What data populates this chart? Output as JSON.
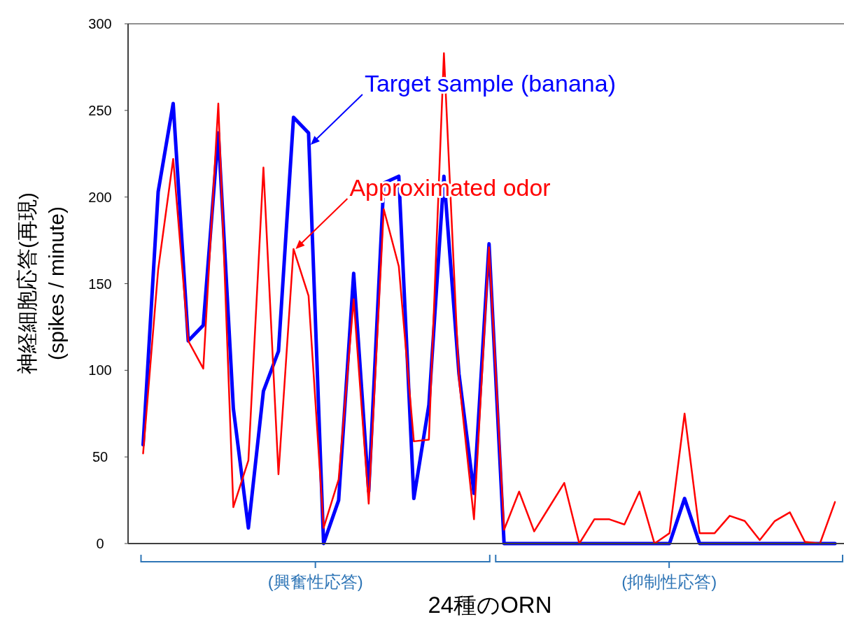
{
  "chart_data": {
    "type": "line",
    "ylabel": "神経細胞応答(再現)\n(spikes / minute)",
    "xlabel": "24種のORN",
    "categories": [
      null,
      null,
      null,
      null,
      null,
      null,
      null,
      null,
      null,
      null,
      null,
      null,
      null,
      null,
      null,
      null,
      null,
      null,
      null,
      null,
      null,
      null,
      null,
      null,
      null,
      null,
      null,
      null,
      null,
      null,
      null,
      null,
      null,
      null,
      null,
      null,
      null,
      null,
      null,
      null,
      null,
      null,
      null,
      null,
      null,
      null,
      null
    ],
    "ylim": [
      0,
      300
    ],
    "yticks": [
      0,
      50,
      100,
      150,
      200,
      250,
      300
    ],
    "grid": false,
    "legend": false,
    "marker": "none",
    "line_style": "solid",
    "series": [
      {
        "name": "Target sample (banana)",
        "color": "#0000ff",
        "values": [
          57,
          203,
          254,
          117,
          126,
          237,
          78,
          9,
          88,
          111,
          246,
          237,
          0,
          25,
          156,
          30,
          208,
          212,
          26,
          80,
          212,
          98,
          29,
          173,
          0,
          0,
          0,
          0,
          0,
          0,
          0,
          0,
          0,
          0,
          0,
          0,
          26,
          0,
          0,
          0,
          0,
          0,
          0,
          0,
          0,
          0,
          0
        ]
      },
      {
        "name": "Approximated odor",
        "color": "#ff0000",
        "values": [
          52,
          158,
          222,
          117,
          101,
          254,
          21,
          48,
          217,
          40,
          170,
          143,
          9,
          37,
          141,
          23,
          193,
          160,
          59,
          60,
          283,
          95,
          14,
          171,
          8,
          30,
          7,
          21,
          35,
          0,
          14,
          14,
          11,
          30,
          0,
          6,
          75,
          6,
          6,
          16,
          13,
          2,
          13,
          18,
          1,
          0,
          24
        ]
      }
    ],
    "annotations": [
      "(興奮性応答)",
      "(抑制性応答)"
    ]
  }
}
